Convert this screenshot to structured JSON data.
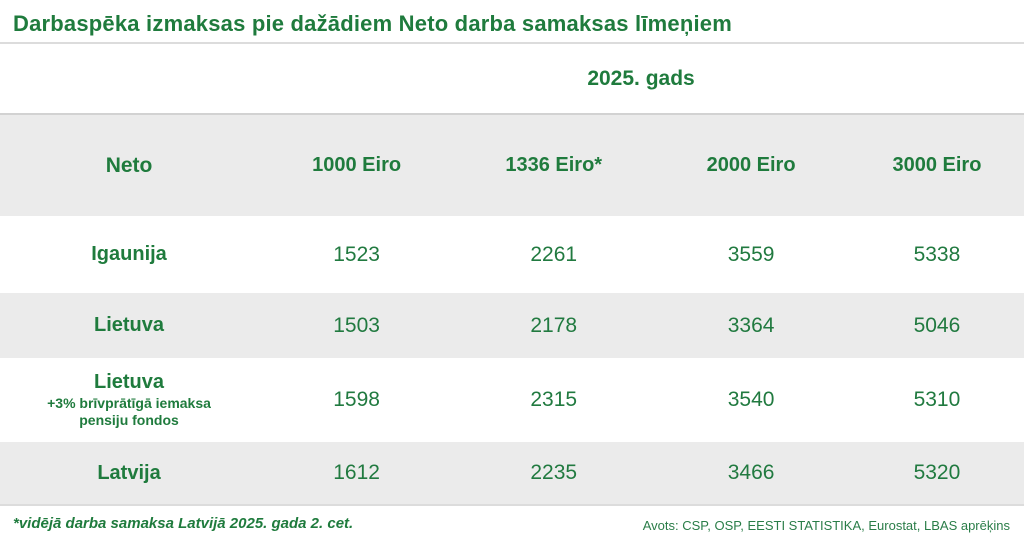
{
  "title": "Darbaspēka izmaksas pie dažādiem Neto darba samaksas līmeņiem",
  "year_header": "2025. gads",
  "table": {
    "columns": [
      "Neto",
      "1000 Eiro",
      "1336 Eiro*",
      "2000 Eiro",
      "3000 Eiro"
    ],
    "rows": [
      {
        "label": "Igaunija",
        "values": [
          "1523",
          "2261",
          "3559",
          "5338"
        ]
      },
      {
        "label": "Lietuva",
        "values": [
          "1503",
          "2178",
          "3364",
          "5046"
        ]
      },
      {
        "label": "Lietuva",
        "sublabel": "+3% brīvprātīgā iemaksa pensiju fondos",
        "values": [
          "1598",
          "2315",
          "3540",
          "5310"
        ]
      },
      {
        "label": "Latvija",
        "values": [
          "1612",
          "2235",
          "3466",
          "5320"
        ]
      }
    ]
  },
  "footnote": "*vidējā darba samaksa Latvijā 2025. gada 2. cet.",
  "source": "Avots: CSP, OSP, EESTI STATISTIKA, Eurostat, LBAS aprēķins",
  "colors": {
    "accent_green": "#1f7b3d",
    "band_gray": "#ebebeb",
    "divider_gray": "#dcdcdc"
  },
  "chart_data": {
    "type": "table",
    "title": "Darbaspēka izmaksas pie dažādiem Neto darba samaksas līmeņiem",
    "subtitle": "2025. gads",
    "columns": [
      "Neto",
      "1000 Eiro",
      "1336 Eiro*",
      "2000 Eiro",
      "3000 Eiro"
    ],
    "rows": [
      {
        "label": "Igaunija",
        "values": [
          1523,
          2261,
          3559,
          5338
        ]
      },
      {
        "label": "Lietuva",
        "values": [
          1503,
          2178,
          3364,
          5046
        ]
      },
      {
        "label": "Lietuva +3% brīvprātīgā iemaksa pensiju fondos",
        "values": [
          1598,
          2315,
          3540,
          5310
        ]
      },
      {
        "label": "Latvija",
        "values": [
          1612,
          2235,
          3466,
          5320
        ]
      }
    ],
    "footnote": "*vidējā darba samaksa Latvijā 2025. gada 2. cet.",
    "source": "Avots: CSP, OSP, EESTI STATISTIKA, Eurostat, LBAS aprēķins"
  }
}
